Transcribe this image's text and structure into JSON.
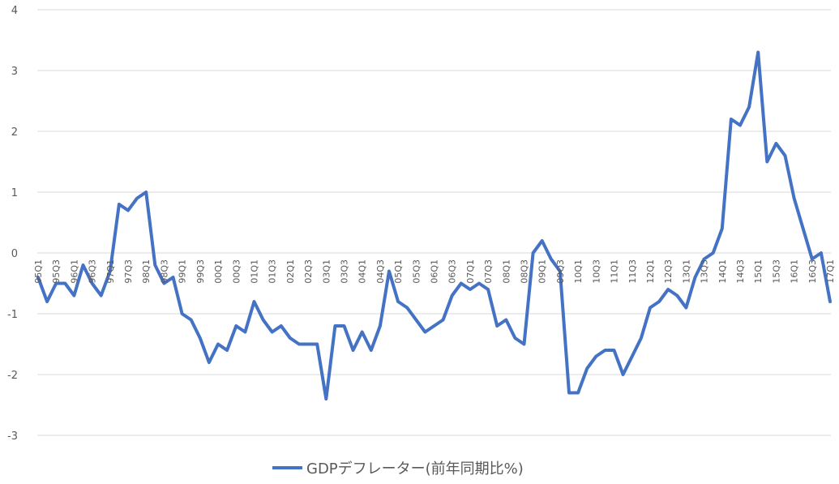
{
  "chart_data": {
    "type": "line",
    "title": "",
    "xlabel": "",
    "ylabel": "",
    "ylim": [
      -3,
      4
    ],
    "yticks": [
      "4",
      "3",
      "2",
      "1",
      "0",
      "-1",
      "-2",
      "-3"
    ],
    "grid": true,
    "legend_position": "bottom",
    "x": [
      "95Q1",
      "95Q2",
      "95Q3",
      "95Q4",
      "96Q1",
      "96Q2",
      "96Q3",
      "96Q4",
      "97Q1",
      "97Q2",
      "97Q3",
      "97Q4",
      "98Q1",
      "98Q2",
      "98Q3",
      "98Q4",
      "99Q1",
      "99Q2",
      "99Q3",
      "99Q4",
      "00Q1",
      "00Q2",
      "00Q3",
      "00Q4",
      "01Q1",
      "01Q2",
      "01Q3",
      "01Q4",
      "02Q1",
      "02Q2",
      "02Q3",
      "02Q4",
      "03Q1",
      "03Q2",
      "03Q3",
      "03Q4",
      "04Q1",
      "04Q2",
      "04Q3",
      "04Q4",
      "05Q1",
      "05Q2",
      "05Q3",
      "05Q4",
      "06Q1",
      "06Q2",
      "06Q3",
      "06Q4",
      "07Q1",
      "07Q2",
      "07Q3",
      "07Q4",
      "08Q1",
      "08Q2",
      "08Q3",
      "08Q4",
      "09Q1",
      "09Q2",
      "09Q3",
      "09Q4",
      "10Q1",
      "10Q2",
      "10Q3",
      "10Q4",
      "11Q1",
      "11Q2",
      "11Q3",
      "11Q4",
      "12Q1",
      "12Q2",
      "12Q3",
      "12Q4",
      "13Q1",
      "13Q2",
      "13Q3",
      "13Q4",
      "14Q1",
      "14Q2",
      "14Q3",
      "14Q4",
      "15Q1",
      "15Q2",
      "15Q3",
      "15Q4",
      "16Q1",
      "16Q2",
      "16Q3",
      "16Q4",
      "17Q1"
    ],
    "xtick_labels": [
      "95Q1",
      "95Q3",
      "96Q1",
      "96Q3",
      "97Q1",
      "97Q3",
      "98Q1",
      "98Q3",
      "99Q1",
      "99Q3",
      "00Q1",
      "00Q3",
      "01Q1",
      "01Q3",
      "02Q1",
      "02Q3",
      "03Q1",
      "03Q3",
      "04Q1",
      "04Q3",
      "05Q1",
      "05Q3",
      "06Q1",
      "06Q3",
      "07Q1",
      "07Q3",
      "08Q1",
      "08Q3",
      "09Q1",
      "09Q3",
      "10Q1",
      "10Q3",
      "11Q1",
      "11Q3",
      "12Q1",
      "12Q3",
      "13Q1",
      "13Q3",
      "14Q1",
      "14Q3",
      "15Q1",
      "15Q3",
      "16Q1",
      "16Q3",
      "17Q1"
    ],
    "series": [
      {
        "name": "GDPデフレーター(前年同期比%)",
        "color": "#4472c4",
        "values": [
          -0.4,
          -0.8,
          -0.5,
          -0.5,
          -0.7,
          -0.2,
          -0.5,
          -0.7,
          -0.3,
          0.8,
          0.7,
          0.9,
          1.0,
          -0.2,
          -0.5,
          -0.4,
          -1.0,
          -1.1,
          -1.4,
          -1.8,
          -1.5,
          -1.6,
          -1.2,
          -1.3,
          -0.8,
          -1.1,
          -1.3,
          -1.2,
          -1.4,
          -1.5,
          -1.5,
          -1.5,
          -2.4,
          -1.2,
          -1.2,
          -1.6,
          -1.3,
          -1.6,
          -1.2,
          -0.3,
          -0.8,
          -0.9,
          -1.1,
          -1.3,
          -1.2,
          -1.1,
          -0.7,
          -0.5,
          -0.6,
          -0.5,
          -0.6,
          -1.2,
          -1.1,
          -1.4,
          -1.5,
          0.0,
          0.2,
          -0.1,
          -0.3,
          -2.3,
          -2.3,
          -1.9,
          -1.7,
          -1.6,
          -1.6,
          -2.0,
          -1.7,
          -1.4,
          -0.9,
          -0.8,
          -0.6,
          -0.7,
          -0.9,
          -0.4,
          -0.1,
          0.0,
          0.4,
          2.2,
          2.1,
          2.4,
          3.3,
          1.5,
          1.8,
          1.6,
          0.9,
          0.4,
          -0.1,
          0.0,
          -0.8
        ]
      }
    ]
  }
}
